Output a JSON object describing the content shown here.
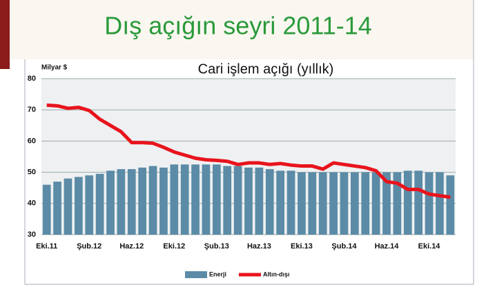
{
  "chart_data": {
    "type": "bar-line",
    "title": "Dış açığın seyri 2011-14",
    "subtitle": "Cari işlem açığı (yıllık)",
    "y_label": "Milyar $",
    "categories": [
      "Eki.11",
      null,
      null,
      null,
      "Şub.12",
      null,
      null,
      null,
      "Haz.12",
      null,
      null,
      null,
      "Eki.12",
      null,
      null,
      null,
      "Şub.13",
      null,
      null,
      null,
      "Haz.13",
      null,
      null,
      null,
      "Eki.13",
      null,
      null,
      null,
      "Şub.14",
      null,
      null,
      null,
      "Haz.14",
      null,
      null,
      null,
      "Eki.14",
      null,
      null
    ],
    "series": [
      {
        "name": "Enerji",
        "type": "bar",
        "color": "#5b8ba6",
        "values": [
          46,
          47,
          48,
          48.5,
          49,
          49.5,
          50.5,
          51,
          51,
          51.5,
          52,
          51.5,
          52.5,
          52.5,
          52.5,
          52.5,
          52.5,
          52,
          52,
          51.5,
          51.5,
          51,
          50.5,
          50.5,
          50,
          50,
          50,
          50,
          50,
          50,
          50,
          50,
          50,
          50,
          50.5,
          50.5,
          50,
          50,
          49
        ]
      },
      {
        "name": "Altın-dışı",
        "type": "line",
        "color": "#e8141c",
        "values": [
          71.5,
          71.3,
          70.5,
          70.8,
          69.8,
          67,
          65,
          63,
          59.5,
          59.5,
          59.3,
          58,
          56.5,
          55.5,
          54.5,
          54,
          53.8,
          53.5,
          52.5,
          53,
          53,
          52.5,
          52.8,
          52.3,
          52,
          52,
          51,
          53,
          52.5,
          52,
          51.5,
          50.5,
          47,
          46.5,
          44.5,
          44.5,
          43,
          42.5,
          42
        ]
      }
    ],
    "ylim": [
      30,
      80
    ],
    "yticks": [
      30,
      40,
      50,
      60,
      70,
      80
    ],
    "grid": true
  }
}
